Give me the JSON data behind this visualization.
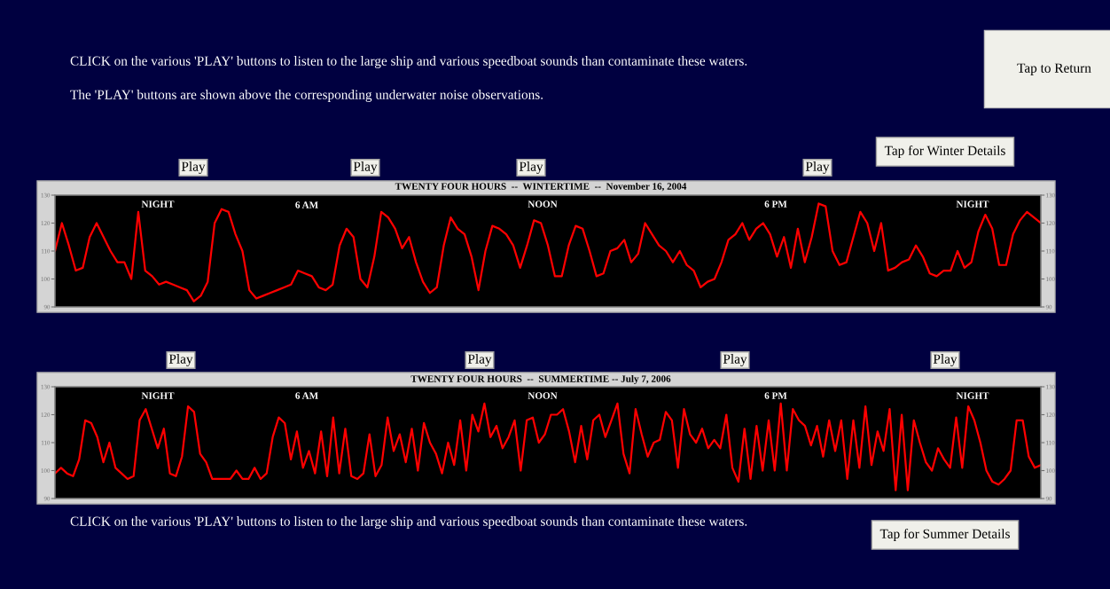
{
  "chart_data": [
    {
      "type": "line",
      "title": "TWENTY FOUR HOURS  --  WINTERTIME  --  November 16, 2004",
      "categories": [
        null,
        null,
        null,
        null,
        null,
        null,
        null,
        null,
        null,
        null,
        null,
        null,
        null,
        null,
        null,
        null,
        null,
        null,
        null,
        null,
        null,
        null,
        null,
        null,
        null,
        null,
        null,
        null,
        null,
        null,
        null,
        null,
        null,
        null,
        null,
        null,
        null,
        null,
        null,
        null,
        null,
        null,
        null,
        null,
        null,
        null,
        null,
        null,
        null,
        null,
        null,
        null,
        null,
        null,
        null,
        null,
        null,
        null,
        null,
        null,
        null,
        null,
        null,
        null,
        null,
        null,
        null,
        null,
        null,
        null,
        null,
        null,
        null,
        null,
        null,
        null,
        null,
        null,
        null,
        null,
        null,
        null,
        null,
        null,
        null,
        null,
        null,
        null,
        null,
        null,
        null,
        null,
        null,
        null,
        null,
        null,
        null,
        null,
        null,
        null,
        null,
        null,
        null,
        null,
        null,
        null,
        null,
        null,
        null,
        null,
        null,
        null,
        null,
        null,
        null,
        null,
        null,
        null,
        null,
        null,
        null,
        null,
        null,
        null,
        null,
        null,
        null,
        null,
        null,
        null,
        null,
        null,
        null,
        null,
        null,
        null,
        null,
        null,
        null,
        null,
        null,
        null,
        null
      ],
      "series": [
        {
          "color": "#ff0000",
          "values": [
            110,
            120,
            112,
            103,
            104,
            115,
            120,
            115,
            110,
            106,
            106,
            100,
            124,
            103,
            101,
            98,
            99,
            98,
            97,
            96,
            92,
            94,
            99,
            120,
            125,
            124,
            116,
            110,
            96,
            93,
            94,
            95,
            96,
            97,
            98,
            103,
            102,
            101,
            97,
            96,
            98,
            112,
            118,
            115,
            100,
            97,
            108,
            124,
            122,
            118,
            111,
            115,
            106,
            99,
            95,
            97,
            112,
            122,
            118,
            116,
            108,
            96,
            110,
            119,
            118,
            116,
            112,
            104,
            112,
            121,
            120,
            112,
            101,
            101,
            112,
            119,
            118,
            110,
            101,
            102,
            110,
            111,
            114,
            106,
            109,
            120,
            116,
            112,
            110,
            106,
            110,
            105,
            103,
            97,
            99,
            100,
            106,
            114,
            116,
            120,
            114,
            118,
            120,
            116,
            108,
            115,
            104,
            118,
            106,
            115,
            127,
            126,
            110,
            105,
            106,
            115,
            124,
            120,
            110,
            120,
            103,
            104,
            106,
            107,
            112,
            108,
            102,
            101,
            103,
            103,
            110,
            104,
            106,
            117,
            123,
            118,
            105,
            105,
            116,
            121,
            124,
            122,
            120
          ]
        }
      ],
      "ylim": [
        90,
        130
      ],
      "yticks": [
        90,
        100,
        110,
        120,
        130
      ],
      "y2lim": [
        90,
        130
      ],
      "y2ticks": [
        90,
        100,
        110,
        120,
        130
      ],
      "tick_labels": "y",
      "annotations": [
        "CLICK on the various 'PLAY' buttons to listen to the large ship and various speedboat sounds than contaminate these waters.",
        "The 'PLAY' buttons are shown above the corresponding underwater noise observations.",
        "Tap to Return",
        "Tap for Winter Details",
        "Play",
        "Play",
        "Play",
        "Play",
        "NIGHT",
        "6 AM",
        "NOON",
        "6 PM",
        "NIGHT"
      ]
    },
    {
      "type": "line",
      "title": "TWENTY FOUR HOURS  --  SUMMERTIME -- July 7, 2006",
      "categories": [
        null,
        null,
        null,
        null,
        null,
        null,
        null,
        null,
        null,
        null,
        null,
        null,
        null,
        null,
        null,
        null,
        null,
        null,
        null,
        null,
        null,
        null,
        null,
        null,
        null,
        null,
        null,
        null,
        null,
        null,
        null,
        null,
        null,
        null,
        null,
        null,
        null,
        null,
        null,
        null,
        null,
        null,
        null,
        null,
        null,
        null,
        null,
        null,
        null,
        null,
        null,
        null,
        null,
        null,
        null,
        null,
        null,
        null,
        null,
        null,
        null,
        null,
        null,
        null,
        null,
        null,
        null,
        null,
        null,
        null,
        null,
        null,
        null,
        null,
        null,
        null,
        null,
        null,
        null,
        null,
        null,
        null,
        null,
        null,
        null,
        null,
        null,
        null,
        null,
        null,
        null,
        null,
        null,
        null,
        null,
        null,
        null,
        null,
        null,
        null,
        null,
        null,
        null,
        null,
        null,
        null,
        null,
        null,
        null,
        null,
        null,
        null,
        null,
        null,
        null,
        null,
        null,
        null,
        null,
        null,
        null,
        null,
        null,
        null,
        null,
        null,
        null,
        null,
        null,
        null,
        null,
        null,
        null,
        null,
        null,
        null,
        null,
        null,
        null,
        null,
        null,
        null,
        null,
        null,
        null,
        null,
        null,
        null,
        null,
        null,
        null,
        null,
        null,
        null,
        null,
        null,
        null,
        null,
        null,
        null,
        null,
        null,
        null,
        null
      ],
      "series": [
        {
          "color": "#ff0000",
          "values": [
            99,
            101,
            99,
            98,
            104,
            118,
            117,
            112,
            103,
            110,
            101,
            99,
            97,
            98,
            118,
            122,
            115,
            108,
            115,
            99,
            98,
            105,
            123,
            121,
            106,
            103,
            97,
            97,
            97,
            97,
            100,
            97,
            97,
            101,
            97,
            99,
            112,
            119,
            117,
            104,
            114,
            101,
            107,
            99,
            114,
            98,
            119,
            99,
            115,
            98,
            97,
            99,
            113,
            98,
            102,
            119,
            107,
            113,
            103,
            115,
            100,
            117,
            110,
            106,
            99,
            110,
            102,
            118,
            100,
            120,
            114,
            124,
            112,
            116,
            108,
            112,
            118,
            100,
            118,
            119,
            110,
            113,
            120,
            120,
            122,
            114,
            103,
            116,
            104,
            118,
            120,
            112,
            118,
            124,
            106,
            99,
            122,
            113,
            105,
            110,
            111,
            121,
            118,
            101,
            122,
            113,
            110,
            115,
            108,
            111,
            108,
            120,
            101,
            96,
            115,
            97,
            116,
            100,
            118,
            100,
            124,
            100,
            122,
            118,
            116,
            109,
            116,
            105,
            118,
            107,
            118,
            97,
            118,
            101,
            123,
            102,
            114,
            107,
            122,
            93,
            120,
            93,
            118,
            110,
            103,
            100,
            108,
            104,
            101,
            119,
            101,
            123,
            118,
            110,
            100,
            96,
            95,
            97,
            100,
            118,
            118,
            105,
            101,
            102
          ]
        }
      ],
      "ylim": [
        90,
        130
      ],
      "yticks": [
        90,
        100,
        110,
        120,
        130
      ],
      "y2lim": [
        90,
        130
      ],
      "y2ticks": [
        90,
        100,
        110,
        120,
        130
      ],
      "tick_labels": "y",
      "annotations": [
        "Play",
        "Play",
        "Play",
        "Play",
        "NIGHT",
        "6 AM",
        "NOON",
        "6 PM",
        "NIGHT",
        "CLICK on the various 'PLAY' buttons to listen to the large ship and various speedboat sounds than contaminate these waters.",
        "Tap for Summer Details"
      ]
    }
  ]
}
